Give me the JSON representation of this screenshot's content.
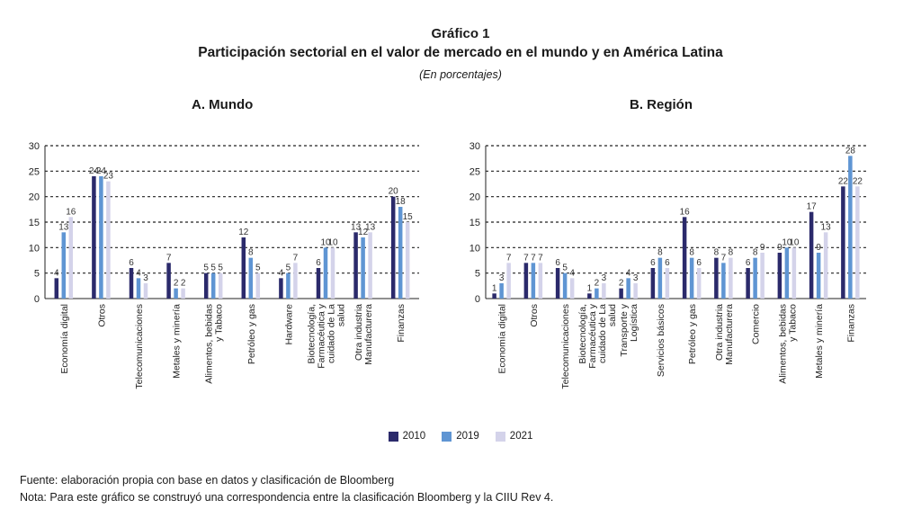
{
  "figure": {
    "number": "Gráfico 1",
    "title": "Participación sectorial en el valor de mercado en el mundo y en América Latina",
    "unit": "(En porcentajes)"
  },
  "colors": {
    "2010": "#2b2a6b",
    "2019": "#5f95d3",
    "2021": "#d4d3ea"
  },
  "legend": [
    "2010",
    "2019",
    "2021"
  ],
  "chart_data": [
    {
      "type": "bar",
      "title": "A. Mundo",
      "ylim": [
        0,
        30
      ],
      "yticks": [
        0,
        5,
        10,
        15,
        20,
        25,
        30
      ],
      "grid": true,
      "categories": [
        "Economía digital",
        "Otros",
        "Telecomunicaciones",
        "Metales y minería",
        "Alimentos, bebidas y Tabaco",
        "Petróleo y gas",
        "Hardware",
        "Biotecnología, Farmacéutica y cuidado de La salud",
        "Otra industria Manufacturera",
        "Finanzas"
      ],
      "series": [
        {
          "name": "2010",
          "values": [
            4,
            24,
            6,
            7,
            5,
            12,
            4,
            6,
            13,
            20
          ]
        },
        {
          "name": "2019",
          "values": [
            13,
            24,
            4,
            2,
            5,
            8,
            5,
            10,
            12,
            18
          ]
        },
        {
          "name": "2021",
          "values": [
            16,
            23,
            3,
            2,
            5,
            5,
            7,
            10,
            13,
            15
          ]
        }
      ]
    },
    {
      "type": "bar",
      "title": "B. Región",
      "ylim": [
        0,
        30
      ],
      "yticks": [
        0,
        5,
        10,
        15,
        20,
        25,
        30
      ],
      "grid": true,
      "categories": [
        "Economía digital",
        "Otros",
        "Telecomunicaciones",
        "Biotecnología, Farmacéutica y cuidado de La salud",
        "Transporte y Logística",
        "Servicios básicos",
        "Petróleo y gas",
        "Otra industria Manufacturera",
        "Comercio",
        "Alimentos, bebidas y Tabaco",
        "Metales y minería",
        "Finanzas"
      ],
      "series": [
        {
          "name": "2010",
          "values": [
            1,
            7,
            6,
            1,
            2,
            6,
            16,
            8,
            6,
            9,
            17,
            22
          ]
        },
        {
          "name": "2019",
          "values": [
            3,
            7,
            5,
            2,
            4,
            8,
            8,
            7,
            8,
            10,
            9,
            28
          ]
        },
        {
          "name": "2021",
          "values": [
            7,
            7,
            4,
            3,
            3,
            6,
            6,
            8,
            9,
            10,
            13,
            22
          ]
        }
      ]
    }
  ],
  "footer": {
    "source": "Fuente: elaboración propia con base en datos y clasificación de Bloomberg",
    "note": "Nota: Para este gráfico se construyó una correspondencia entre la clasificación Bloomberg y la CIIU Rev 4."
  }
}
